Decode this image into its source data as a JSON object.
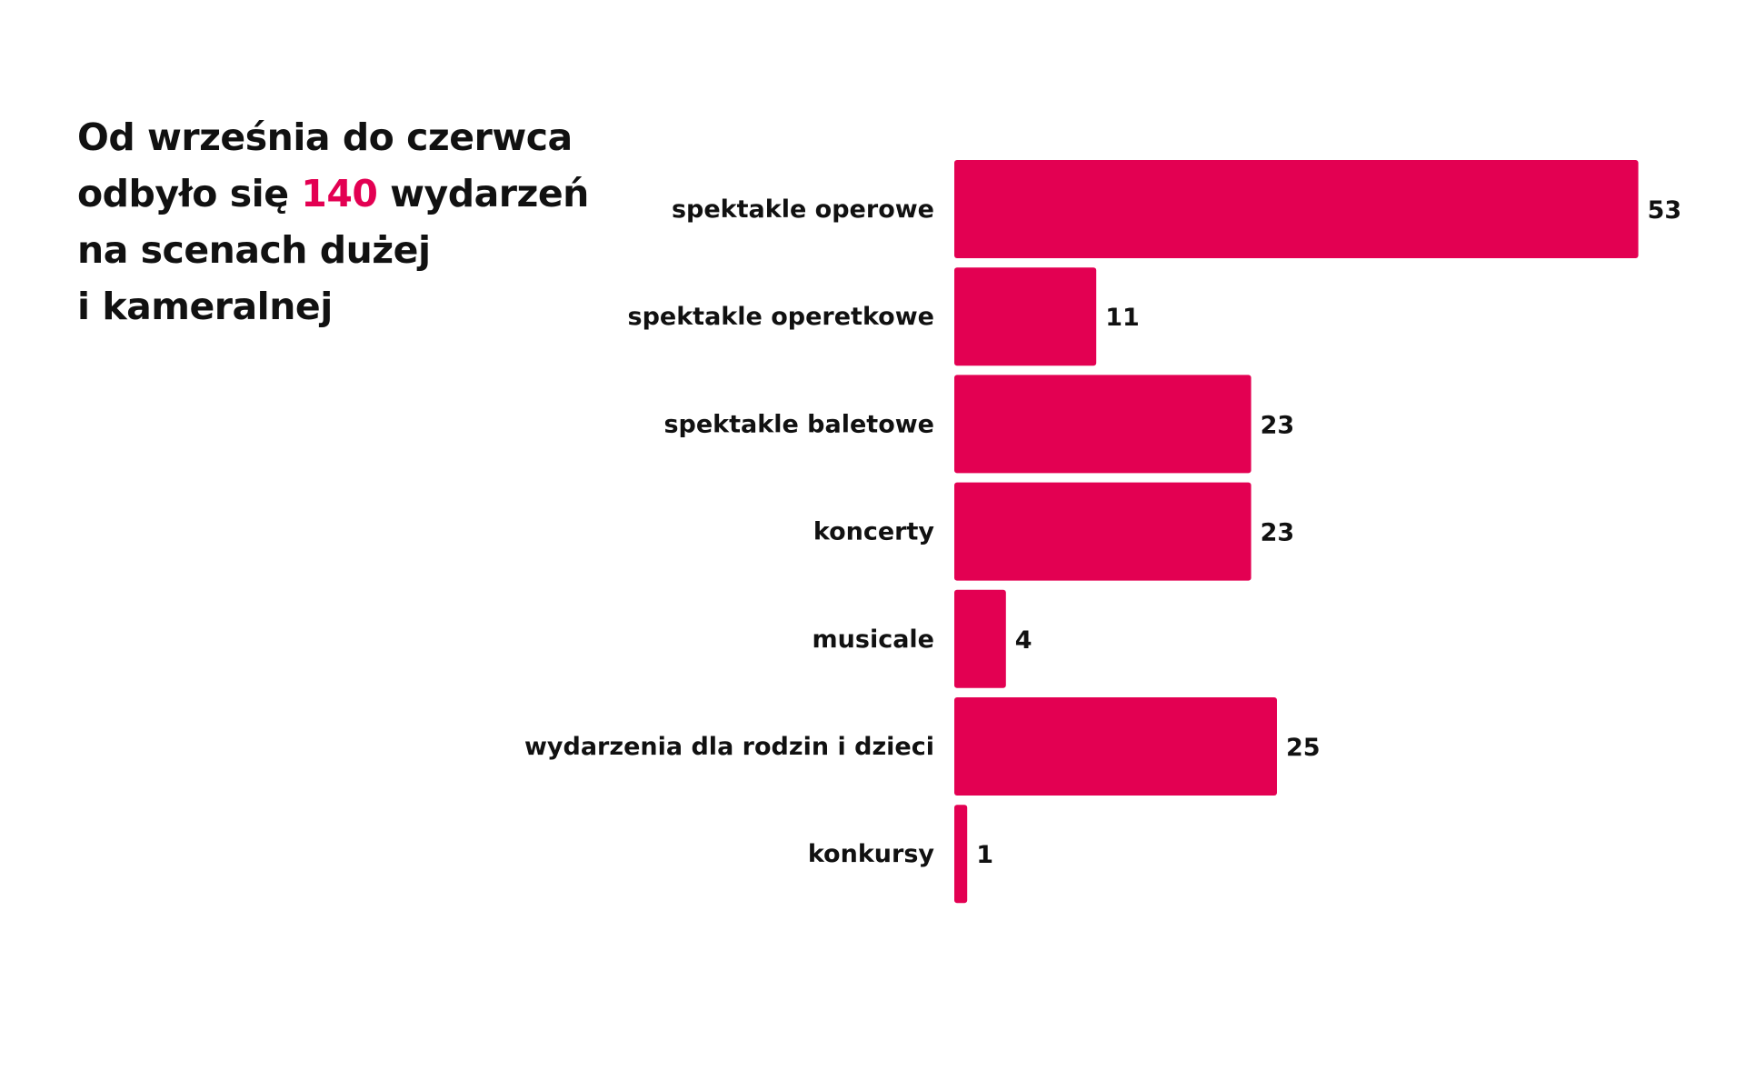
{
  "headline": {
    "line1": "Od września do czerwca",
    "line2_before": "odbyło się ",
    "line2_highlight": "140",
    "line2_after": " wydarzeń",
    "line3": "na scenach dużej",
    "line4": "i kameralnej"
  },
  "colors": {
    "accent": "#e30052",
    "text": "#111111",
    "background": "#ffffff"
  },
  "chart_data": {
    "type": "bar",
    "orientation": "horizontal",
    "categories": [
      "spektakle operowe",
      "spektakle operetkowe",
      "spektakle baletowe",
      "koncerty",
      "musicale",
      "wydarzenia dla rodzin i dzieci",
      "konkursy"
    ],
    "values": [
      53,
      11,
      23,
      23,
      4,
      25,
      1
    ],
    "data_labels": [
      "53",
      "11",
      "23",
      "23",
      "4",
      "25",
      "1"
    ],
    "grid": false,
    "legend": "none"
  }
}
